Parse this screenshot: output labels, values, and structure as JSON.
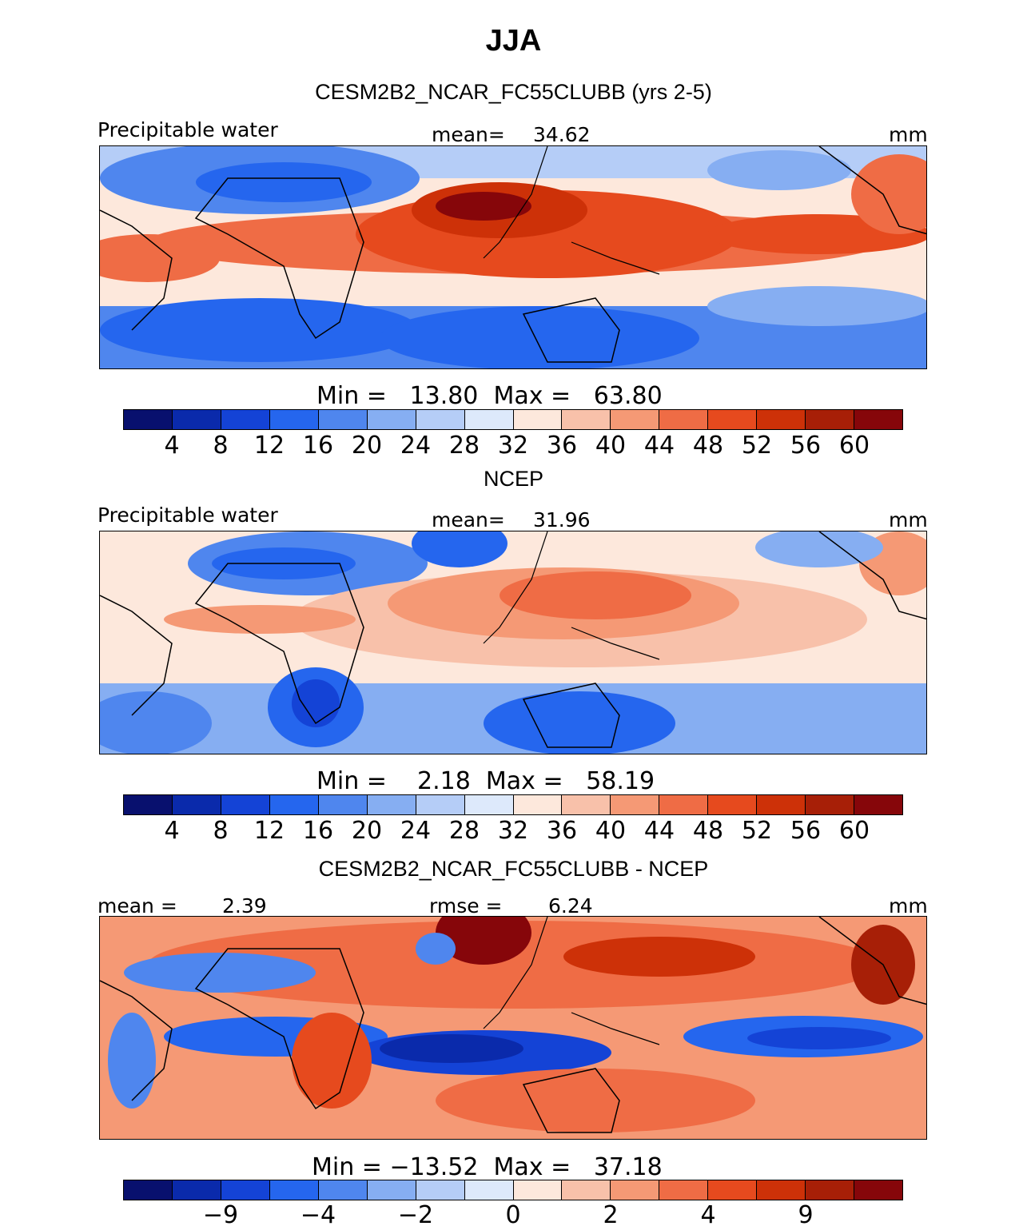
{
  "figure": {
    "title": "JJA",
    "palette": [
      "#08106e",
      "#0a2aab",
      "#1443d6",
      "#2566ee",
      "#4f86ee",
      "#86aef2",
      "#b5cdf7",
      "#dde9fb",
      "#fde8dc",
      "#f8c1aa",
      "#f59975",
      "#ef6c45",
      "#e64a1e",
      "#cd3108",
      "#a71f07",
      "#86060a"
    ]
  },
  "chart_data": [
    {
      "type": "heatmap",
      "panel_title": "CESM2B2_NCAR_FC55CLUBB (yrs 2-5)",
      "variable": "Precipitable water",
      "mean_label": "mean=",
      "mean": "34.62",
      "units": "mm",
      "minmax_text": "Min =   13.80  Max =   63.80",
      "min": 13.8,
      "max": 63.8,
      "colorbar_ticks": [
        "4",
        "8",
        "12",
        "16",
        "20",
        "24",
        "28",
        "32",
        "36",
        "40",
        "44",
        "48",
        "52",
        "56",
        "60"
      ]
    },
    {
      "type": "heatmap",
      "panel_title": "NCEP",
      "variable": "Precipitable water",
      "mean_label": "mean=",
      "mean": "31.96",
      "units": "mm",
      "minmax_text": "Min =    2.18  Max =   58.19",
      "min": 2.18,
      "max": 58.19,
      "colorbar_ticks": [
        "4",
        "8",
        "12",
        "16",
        "20",
        "24",
        "28",
        "32",
        "36",
        "40",
        "44",
        "48",
        "52",
        "56",
        "60"
      ]
    },
    {
      "type": "heatmap",
      "panel_title": "CESM2B2_NCAR_FC55CLUBB - NCEP",
      "mean_label": "mean =",
      "mean": "2.39",
      "rmse_label": "rmse =",
      "rmse": "6.24",
      "units": "mm",
      "minmax_text": "Min = −13.52  Max =   37.18",
      "min": -13.52,
      "max": 37.18,
      "colorbar_ticks": [
        "−9",
        "−4",
        "−2",
        "0",
        "2",
        "4",
        "9"
      ]
    }
  ]
}
